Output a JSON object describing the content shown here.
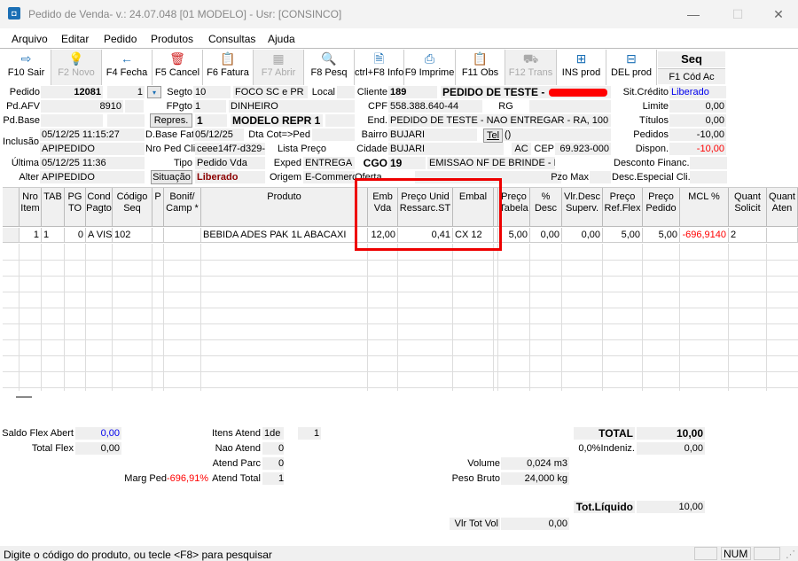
{
  "window": {
    "title": "Pedido de Venda- v.: 24.07.048  [01 MODELO] - Usr: [CONSINCO]",
    "minimize": "—",
    "maximize": "☐",
    "close": "✕"
  },
  "menu": [
    "Arquivo",
    "Editar",
    "Pedido",
    "Produtos",
    "Consultas",
    "Ajuda"
  ],
  "toolbar": [
    {
      "label": "F10 Sair",
      "icon": "exit-icon",
      "glyph": "⇨",
      "enabled": true
    },
    {
      "label": "F2 Novo",
      "icon": "lightbulb-icon",
      "glyph": "💡",
      "enabled": false
    },
    {
      "label": "F4 Fecha",
      "icon": "arrow-left-icon",
      "glyph": "←",
      "enabled": true
    },
    {
      "label": "F5 Cancel",
      "icon": "trash-icon",
      "glyph": "🗑",
      "enabled": true
    },
    {
      "label": "F6 Fatura",
      "icon": "clipboard-icon",
      "glyph": "📋",
      "enabled": true
    },
    {
      "label": "F7 Abrir",
      "icon": "table-icon",
      "glyph": "▦",
      "enabled": false
    },
    {
      "label": "F8 Pesq",
      "icon": "search-icon",
      "glyph": "🔍",
      "enabled": true
    },
    {
      "label": "ctrl+F8 Info",
      "icon": "document-icon",
      "glyph": "🗎",
      "enabled": true
    },
    {
      "label": "F9 Imprime",
      "icon": "printer-icon",
      "glyph": "⎙",
      "enabled": true
    },
    {
      "label": "F11 Obs",
      "icon": "clipboard-icon",
      "glyph": "📋",
      "enabled": true
    },
    {
      "label": "F12 Trans",
      "icon": "truck-icon",
      "glyph": "⛟",
      "enabled": false
    },
    {
      "label": "INS prod",
      "icon": "insert-row-icon",
      "glyph": "⊞",
      "enabled": true
    },
    {
      "label": "DEL prod",
      "icon": "delete-row-icon",
      "glyph": "⊟",
      "enabled": true
    }
  ],
  "seq": {
    "title": "Seq",
    "button": "F1 Cód Ac"
  },
  "form": {
    "pedido_label": "Pedido",
    "pedido": "12081",
    "pedido_seq": "1",
    "segto_label": "Segto",
    "segto": "10",
    "segto_desc": "FOCO SC e PR",
    "local_label": "Local",
    "local": "",
    "pdafv_label": "Pd.AFV",
    "pdafv": "8910",
    "fpgto_label": "FPgto",
    "fpgto": "1",
    "fpgto_desc": "DINHEIRO",
    "pdbase_label": "Pd.Base",
    "pdbase": "",
    "repres_button": "Repres.",
    "repres": "1",
    "repres_desc": "MODELO REPR 1",
    "inclusao_label": "Inclusão",
    "inclusao_data": "05/12/25 11:15:27",
    "inclusao_user": "APIPEDIDO",
    "dbasefat_label": "D.Base Fat",
    "dbasefat": "05/12/25",
    "dtacot_label": "Dta Cot=>Ped",
    "dtacot": "",
    "nropedcli_label": "Nro Ped Cli",
    "nropedcli": "ceee14f7-d329-4",
    "listapreco_label": "Lista Preço",
    "ultima_label": "Última",
    "ultima_data": "05/12/25 11:36",
    "alter_label": "Alter",
    "alter_user": "APIPEDIDO",
    "tipo_label": "Tipo",
    "tipo": "Pedido Vda",
    "exped_label": "Exped",
    "exped": "ENTREGA",
    "situacao_button": "Situação",
    "situacao": "Liberado",
    "origem_label": "Origem",
    "origem": "E-Commerce",
    "cliente_label": "Cliente",
    "cliente": "189",
    "cliente_nome": "PEDIDO DE TESTE -",
    "cpf_label": "CPF",
    "cpf": "558.388.640-44",
    "rg_label": "RG",
    "rg": "",
    "end_label": "End.",
    "end": "PEDIDO DE TESTE - NAO ENTREGAR - RA, 100",
    "bairro_label": "Bairro",
    "bairro": "BUJARI",
    "tel_button": "Tel",
    "tel": "()",
    "cidade_label": "Cidade",
    "cidade": "BUJARI",
    "uf": "AC",
    "cep_label": "CEP",
    "cep": "69.923-000",
    "cgo_label": "CGO",
    "cgo": "19",
    "cgo_desc": "EMISSAO NF DE BRINDE - B",
    "oferta_label": "Oferta",
    "pzomax_label": "Pzo Max",
    "sitcredito_label": "Sit.Crédito",
    "sitcredito": "Liberado",
    "limite_label": "Limite",
    "limite": "0,00",
    "titulos_label": "Títulos",
    "titulos": "0,00",
    "pedidos_label": "Pedidos",
    "pedidos": "-10,00",
    "dispon_label": "Dispon.",
    "dispon": "-10,00",
    "descfin_label": "Desconto Financ.",
    "descesp_label": "Desc.Especial Cli."
  },
  "grid": {
    "columns": [
      "Nro Item",
      "TAB",
      "PG TO",
      "Cond Pagto",
      "Código Seq",
      "P",
      "Bonif/ Camp *",
      "Produto",
      "Emb Vda",
      "Preço Unid Ressarc.ST",
      "Embal",
      "",
      "Preço Tabela",
      "% Desc",
      "Vlr.Desc Superv.",
      "Preço Ref.Flex",
      "Preço Pedido",
      "MCL %",
      "Quant Solicit",
      "Quant Aten"
    ],
    "rows": [
      [
        "1",
        "1",
        "0",
        "A VIS",
        "102",
        "",
        "",
        "BEBIDA ADES PAK 1L ABACAXI",
        "12,00",
        "0,41",
        "CX 12",
        "",
        "5,00",
        "0,00",
        "0,00",
        "5,00",
        "5,00",
        "-696,9140",
        "2",
        ""
      ]
    ]
  },
  "totals": {
    "saldoflex_label": "Saldo Flex Abert",
    "saldoflex": "0,00",
    "totalflex_label": "Total Flex",
    "totalflex": "0,00",
    "margped_label": "Marg Ped",
    "margped": "-696,91%",
    "itensatend_label": "Itens Atend",
    "itensatend": "1de",
    "itensatend_total": "1",
    "naoatend_label": "Nao Atend",
    "naoatend": "0",
    "atendparc_label": "Atend Parc",
    "atendparc": "0",
    "atendtotal_label": "Atend Total",
    "atendtotal": "1",
    "volume_label": "Volume",
    "volume": "0,024 m3",
    "pesobruto_label": "Peso Bruto",
    "pesobruto": "24,000 kg",
    "vlrtotvol_label": "Vlr Tot Vol",
    "vlrtotvol": "0,00",
    "total_label": "TOTAL",
    "total": "10,00",
    "indeniz_label": "0,0%Indeniz.",
    "indeniz": "0,00",
    "totliquido_label": "Tot.Líquido",
    "totliquido": "10,00"
  },
  "status": {
    "message": "Digite o código do produto, ou tecle <F8> para pesquisar",
    "num": "NUM"
  },
  "colors": {
    "accent": "#1a6fb5",
    "negative": "#ff0000",
    "liberado": "#8b0000",
    "highlight_box": "#e00000"
  }
}
